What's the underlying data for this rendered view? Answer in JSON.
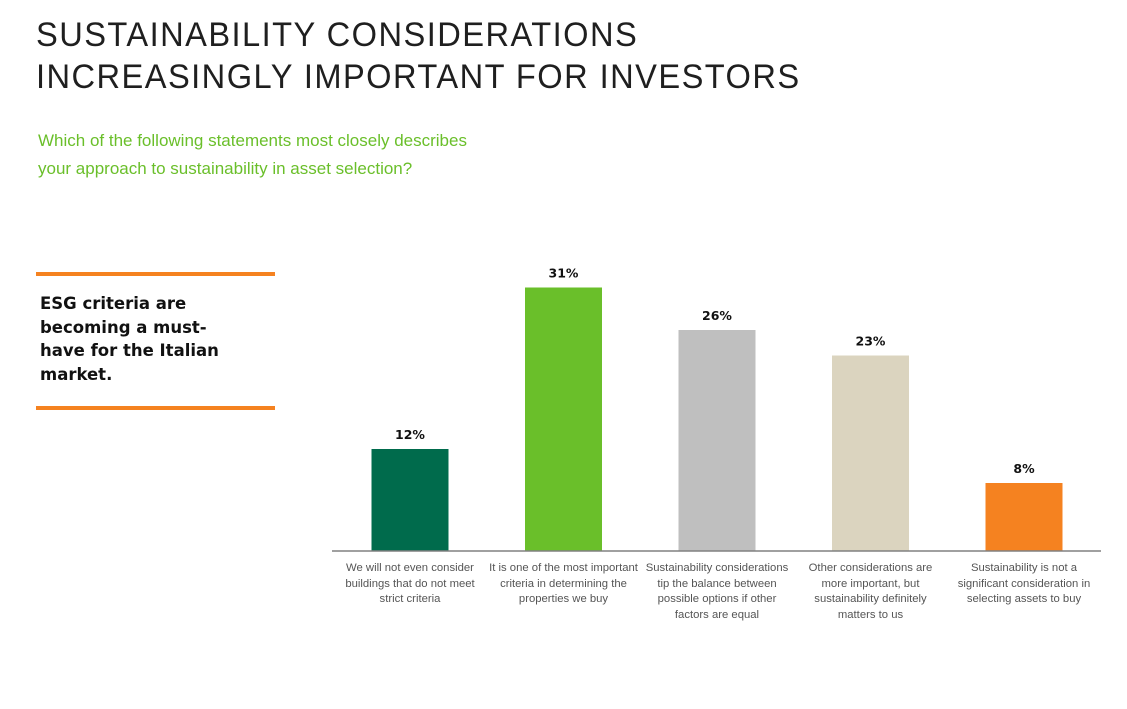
{
  "header": {
    "title_lines": [
      "SUSTAINABILITY CONSIDERATIONS",
      "INCREASINGLY IMPORTANT FOR INVESTORS"
    ],
    "question_lines": [
      "Which of the following statements most closely describes",
      "your approach to sustainability in asset selection?"
    ]
  },
  "callout": {
    "text": "ESG criteria are becoming a must-have for the Italian market.",
    "accent_color": "#f58220"
  },
  "chart_data": {
    "type": "bar",
    "title": "Which of the following statements most closely describes your approach to sustainability in asset selection?",
    "xlabel": "",
    "ylabel": "",
    "ylim": [
      0,
      35
    ],
    "grid": false,
    "legend": "none",
    "unit": "%",
    "categories": [
      "We will not even consider buildings that do not meet strict criteria",
      "It is one of the most important criteria in determining the properties we buy",
      "Sustainability considerations tip the balance between possible options if other factors are equal",
      "Other considerations are more important, but sustainability definitely matters to us",
      "Sustainability is not a significant consideration in selecting assets to buy"
    ],
    "values": [
      12,
      31,
      26,
      23,
      8
    ],
    "data_labels": [
      "12%",
      "31%",
      "26%",
      "23%",
      "8%"
    ],
    "colors": [
      "#006b4c",
      "#6abf2a",
      "#bfbfbf",
      "#dbd4bf",
      "#f58220"
    ],
    "axis_color": "#808080"
  }
}
